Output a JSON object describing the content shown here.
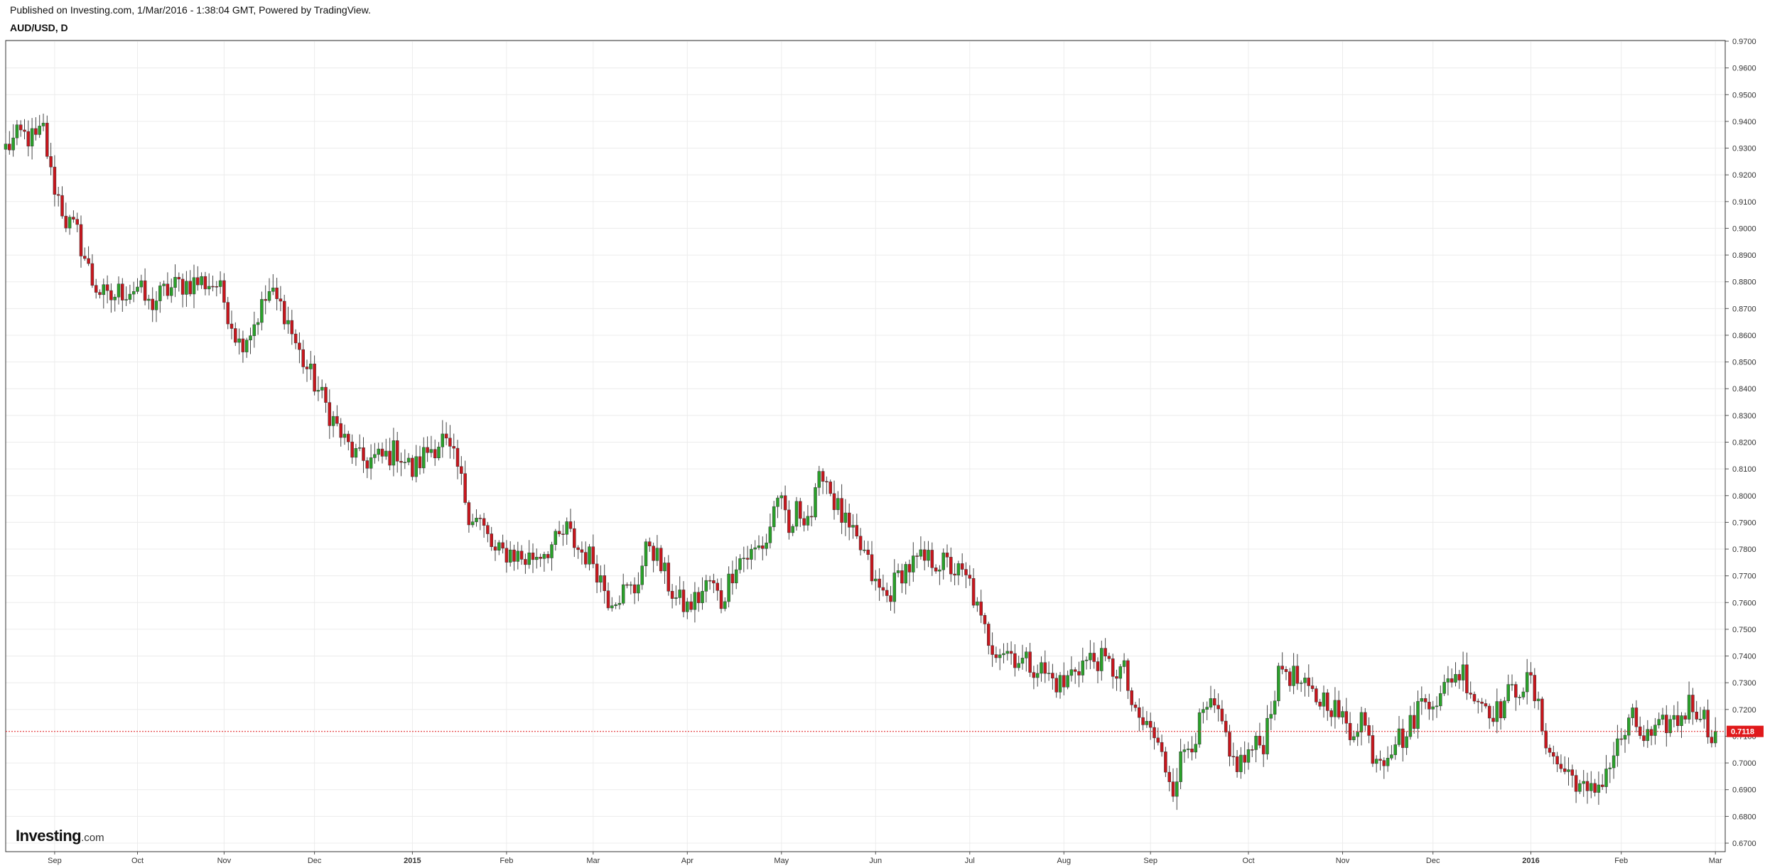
{
  "header": {
    "published": "Published on Investing.com, 1/Mar/2016 - 1:38:04 GMT, Powered by TradingView.",
    "symbol": "AUD/USD, D"
  },
  "logo": {
    "name": "Investing",
    "suffix": ".com"
  },
  "current_price_label": "0.7118",
  "colors": {
    "up": "#2aa12a",
    "down": "#c8161d",
    "price_line": "#e0191b",
    "grid": "#ececec"
  },
  "chart_data": {
    "type": "candlestick",
    "title": "AUD/USD, D",
    "ylim": [
      0.665,
      0.971
    ],
    "y_ticks": [
      "0.9700",
      "0.9600",
      "0.9500",
      "0.9400",
      "0.9300",
      "0.9200",
      "0.9100",
      "0.9000",
      "0.8900",
      "0.8800",
      "0.8700",
      "0.8600",
      "0.8500",
      "0.8400",
      "0.8300",
      "0.8200",
      "0.8100",
      "0.8000",
      "0.7900",
      "0.7800",
      "0.7700",
      "0.7600",
      "0.7500",
      "0.7400",
      "0.7300",
      "0.7200",
      "0.7100",
      "0.7000",
      "0.6900",
      "0.6800",
      "0.6700"
    ],
    "x_ticks": [
      {
        "label": "Sep",
        "bar": 13,
        "bold": false
      },
      {
        "label": "Oct",
        "bar": 35,
        "bold": false
      },
      {
        "label": "Nov",
        "bar": 58,
        "bold": false
      },
      {
        "label": "Dec",
        "bar": 82,
        "bold": false
      },
      {
        "label": "2015",
        "bar": 108,
        "bold": true
      },
      {
        "label": "Feb",
        "bar": 133,
        "bold": false
      },
      {
        "label": "Mar",
        "bar": 156,
        "bold": false
      },
      {
        "label": "Apr",
        "bar": 181,
        "bold": false
      },
      {
        "label": "May",
        "bar": 206,
        "bold": false
      },
      {
        "label": "Jun",
        "bar": 231,
        "bold": false
      },
      {
        "label": "Jul",
        "bar": 256,
        "bold": false
      },
      {
        "label": "Aug",
        "bar": 281,
        "bold": false
      },
      {
        "label": "Sep",
        "bar": 304,
        "bold": false
      },
      {
        "label": "Oct",
        "bar": 330,
        "bold": false
      },
      {
        "label": "Nov",
        "bar": 355,
        "bold": false
      },
      {
        "label": "Dec",
        "bar": 379,
        "bold": false
      },
      {
        "label": "2016",
        "bar": 405,
        "bold": true
      },
      {
        "label": "Feb",
        "bar": 429,
        "bold": false
      },
      {
        "label": "Mar",
        "bar": 454,
        "bold": false
      }
    ],
    "last_price": 0.7118,
    "grid": true,
    "anchors": [
      [
        0,
        0.93
      ],
      [
        4,
        0.935
      ],
      [
        8,
        0.933
      ],
      [
        10,
        0.937
      ],
      [
        12,
        0.92
      ],
      [
        16,
        0.903
      ],
      [
        19,
        0.898
      ],
      [
        23,
        0.88
      ],
      [
        27,
        0.873
      ],
      [
        30,
        0.876
      ],
      [
        35,
        0.878
      ],
      [
        38,
        0.871
      ],
      [
        42,
        0.876
      ],
      [
        46,
        0.879
      ],
      [
        52,
        0.88
      ],
      [
        56,
        0.879
      ],
      [
        58,
        0.873
      ],
      [
        62,
        0.857
      ],
      [
        65,
        0.862
      ],
      [
        70,
        0.876
      ],
      [
        74,
        0.869
      ],
      [
        78,
        0.853
      ],
      [
        82,
        0.842
      ],
      [
        86,
        0.831
      ],
      [
        90,
        0.82
      ],
      [
        94,
        0.813
      ],
      [
        100,
        0.814
      ],
      [
        104,
        0.817
      ],
      [
        108,
        0.809
      ],
      [
        112,
        0.817
      ],
      [
        116,
        0.821
      ],
      [
        120,
        0.81
      ],
      [
        123,
        0.794
      ],
      [
        126,
        0.79
      ],
      [
        130,
        0.778
      ],
      [
        134,
        0.779
      ],
      [
        138,
        0.776
      ],
      [
        142,
        0.779
      ],
      [
        146,
        0.782
      ],
      [
        149,
        0.787
      ],
      [
        152,
        0.78
      ],
      [
        156,
        0.776
      ],
      [
        160,
        0.762
      ],
      [
        164,
        0.764
      ],
      [
        167,
        0.765
      ],
      [
        171,
        0.783
      ],
      [
        175,
        0.77
      ],
      [
        178,
        0.761
      ],
      [
        181,
        0.758
      ],
      [
        184,
        0.762
      ],
      [
        187,
        0.768
      ],
      [
        190,
        0.76
      ],
      [
        194,
        0.776
      ],
      [
        198,
        0.778
      ],
      [
        202,
        0.783
      ],
      [
        205,
        0.801
      ],
      [
        208,
        0.785
      ],
      [
        210,
        0.794
      ],
      [
        214,
        0.793
      ],
      [
        217,
        0.81
      ],
      [
        220,
        0.798
      ],
      [
        224,
        0.786
      ],
      [
        228,
        0.778
      ],
      [
        231,
        0.766
      ],
      [
        234,
        0.762
      ],
      [
        238,
        0.772
      ],
      [
        242,
        0.775
      ],
      [
        246,
        0.776
      ],
      [
        250,
        0.774
      ],
      [
        253,
        0.771
      ],
      [
        256,
        0.767
      ],
      [
        259,
        0.752
      ],
      [
        262,
        0.744
      ],
      [
        266,
        0.742
      ],
      [
        270,
        0.738
      ],
      [
        274,
        0.736
      ],
      [
        278,
        0.731
      ],
      [
        281,
        0.729
      ],
      [
        284,
        0.736
      ],
      [
        287,
        0.738
      ],
      [
        290,
        0.739
      ],
      [
        294,
        0.735
      ],
      [
        297,
        0.734
      ],
      [
        300,
        0.716
      ],
      [
        304,
        0.713
      ],
      [
        307,
        0.702
      ],
      [
        310,
        0.692
      ],
      [
        313,
        0.705
      ],
      [
        316,
        0.711
      ],
      [
        319,
        0.72
      ],
      [
        322,
        0.718
      ],
      [
        325,
        0.701
      ],
      [
        328,
        0.7
      ],
      [
        331,
        0.705
      ],
      [
        334,
        0.708
      ],
      [
        336,
        0.722
      ],
      [
        339,
        0.736
      ],
      [
        342,
        0.732
      ],
      [
        345,
        0.727
      ],
      [
        348,
        0.724
      ],
      [
        351,
        0.724
      ],
      [
        354,
        0.718
      ],
      [
        357,
        0.711
      ],
      [
        360,
        0.718
      ],
      [
        363,
        0.704
      ],
      [
        366,
        0.703
      ],
      [
        369,
        0.709
      ],
      [
        372,
        0.71
      ],
      [
        375,
        0.721
      ],
      [
        378,
        0.725
      ],
      [
        381,
        0.724
      ],
      [
        384,
        0.733
      ],
      [
        387,
        0.734
      ],
      [
        390,
        0.725
      ],
      [
        393,
        0.722
      ],
      [
        396,
        0.719
      ],
      [
        399,
        0.725
      ],
      [
        402,
        0.729
      ],
      [
        405,
        0.73
      ],
      [
        408,
        0.714
      ],
      [
        411,
        0.701
      ],
      [
        414,
        0.697
      ],
      [
        417,
        0.694
      ],
      [
        420,
        0.687
      ],
      [
        423,
        0.692
      ],
      [
        426,
        0.7
      ],
      [
        429,
        0.709
      ],
      [
        432,
        0.716
      ],
      [
        435,
        0.709
      ],
      [
        438,
        0.71
      ],
      [
        441,
        0.715
      ],
      [
        444,
        0.716
      ],
      [
        447,
        0.722
      ],
      [
        450,
        0.72
      ],
      [
        452,
        0.713
      ],
      [
        454,
        0.7118
      ]
    ]
  }
}
